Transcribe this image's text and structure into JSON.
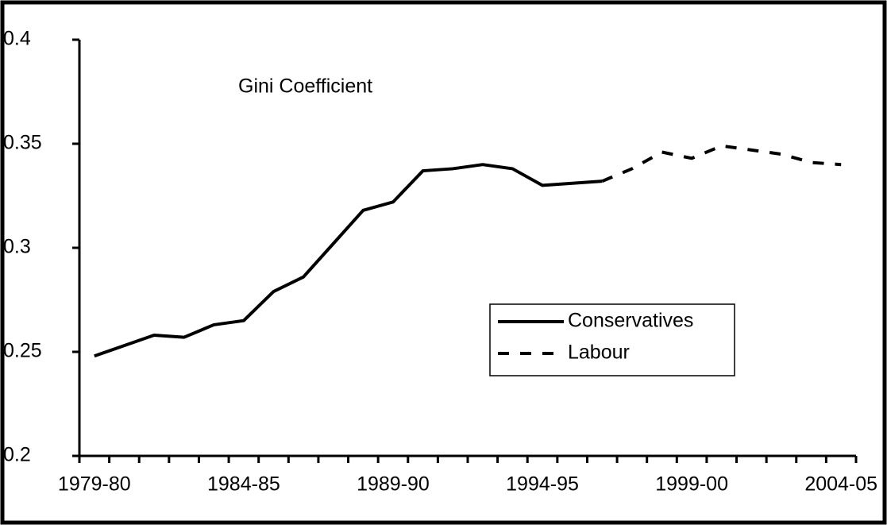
{
  "chart_data": {
    "type": "line",
    "annotation": "Gini Coefficient",
    "categories": [
      "1979-80",
      null,
      null,
      null,
      null,
      "1984-85",
      null,
      null,
      null,
      null,
      "1989-90",
      null,
      null,
      null,
      null,
      "1994-95",
      null,
      null,
      null,
      null,
      "1999-00",
      null,
      null,
      null,
      null,
      "2004-05"
    ],
    "series": [
      {
        "name": "Conservatives",
        "color": "#000000",
        "line_style": "solid",
        "values": [
          0.248,
          0.253,
          0.258,
          0.257,
          0.263,
          0.265,
          0.279,
          0.286,
          0.302,
          0.318,
          0.322,
          0.337,
          0.338,
          0.34,
          0.338,
          0.33,
          0.331,
          0.332,
          null,
          null,
          null,
          null,
          null,
          null,
          null,
          null
        ]
      },
      {
        "name": "Labour",
        "color": "#000000",
        "line_style": "dashed",
        "values": [
          null,
          null,
          null,
          null,
          null,
          null,
          null,
          null,
          null,
          null,
          null,
          null,
          null,
          null,
          null,
          null,
          null,
          0.332,
          0.338,
          0.346,
          0.343,
          0.349,
          0.347,
          0.345,
          0.341,
          0.34
        ]
      }
    ],
    "ylim": [
      0.2,
      0.4
    ],
    "yticks": [
      0.2,
      0.25,
      0.3,
      0.35,
      0.4
    ],
    "grid": false,
    "legend": "center-right"
  }
}
